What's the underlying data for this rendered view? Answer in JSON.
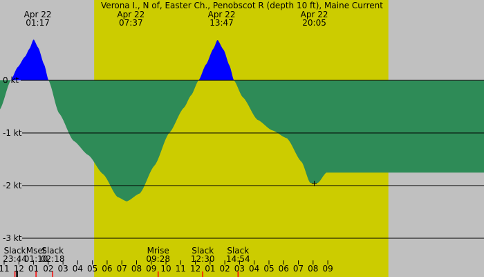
{
  "chart_data": {
    "type": "area",
    "title": "Verona I., N of, Easter Ch., Penobscot R (depth 10 ft), Maine Current",
    "unit": "kt",
    "colors": {
      "night": "#c0c0c0",
      "day": "#cccc00",
      "flood": "#0000ff",
      "ebb": "#2e8b57",
      "grid": "#000000",
      "tick_red": "#ff0000"
    },
    "x_range_hours": [
      -1.0,
      31.9
    ],
    "y_range_kt": [
      -3.0,
      1.2
    ],
    "daylight_hours": [
      [
        5.4,
        25.4
      ]
    ],
    "y_ticks": [
      {
        "value": 0,
        "label": "0 kt"
      },
      {
        "value": -1,
        "label": "-1 kt"
      },
      {
        "value": -2,
        "label": "-2 kt"
      },
      {
        "value": -3,
        "label": "-3 kt"
      }
    ],
    "top_labels": [
      {
        "date": "Apr 22",
        "time": "01:17",
        "hour": 1.283
      },
      {
        "date": "Apr 22",
        "time": "07:37",
        "hour": 7.617
      },
      {
        "date": "Apr 22",
        "time": "13:47",
        "hour": 13.783
      },
      {
        "date": "Apr 22",
        "time": "20:05",
        "hour": 20.083
      }
    ],
    "bottom_events": [
      {
        "name": "Slack",
        "time": "23:44",
        "hour": -0.267
      },
      {
        "name": "Mset",
        "time": "01:10",
        "hour": 1.167
      },
      {
        "name": "Slack",
        "time": "02:18",
        "hour": 2.3
      },
      {
        "name": "Mrise",
        "time": "09:28",
        "hour": 9.467
      },
      {
        "name": "Slack",
        "time": "12:30",
        "hour": 12.5
      },
      {
        "name": "Slack",
        "time": "14:54",
        "hour": 14.9
      }
    ],
    "hour_ticks": [
      "11",
      "12",
      "01",
      "02",
      "03",
      "04",
      "05",
      "06",
      "07",
      "08",
      "09",
      "10",
      "11",
      "12",
      "01",
      "02",
      "03",
      "04",
      "05",
      "06",
      "07",
      "08",
      "09"
    ],
    "series": [
      {
        "x": [
          -1.0,
          -0.267,
          0.2,
          0.7,
          1.0,
          1.283,
          1.6,
          2.0,
          2.3,
          3.0,
          4.0,
          5.0,
          6.0,
          7.0,
          7.617,
          8.5,
          9.5,
          10.5,
          11.5,
          12.0,
          12.5,
          13.0,
          13.5,
          13.783,
          14.2,
          14.6,
          14.9,
          15.5,
          16.5,
          17.5,
          18.5,
          19.5,
          20.083,
          20.6,
          21.2
        ],
        "y": [
          -0.55,
          0.0,
          0.25,
          0.45,
          0.6,
          0.78,
          0.62,
          0.3,
          0.0,
          -0.62,
          -1.15,
          -1.42,
          -1.78,
          -2.22,
          -2.3,
          -2.15,
          -1.62,
          -1.0,
          -0.52,
          -0.28,
          0.0,
          0.3,
          0.6,
          0.77,
          0.58,
          0.28,
          0.0,
          -0.32,
          -0.75,
          -0.95,
          -1.1,
          -1.55,
          -1.95,
          -1.95,
          -1.75
        ]
      }
    ],
    "marker": {
      "hour": 20.083,
      "value": -1.95,
      "symbol": "+"
    }
  }
}
